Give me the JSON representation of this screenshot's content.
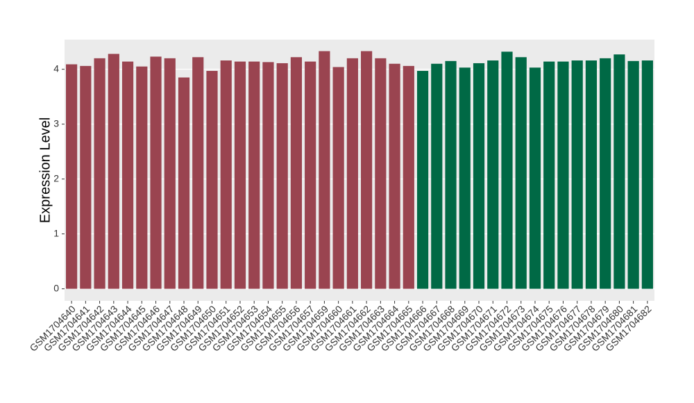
{
  "chart_data": {
    "type": "bar",
    "y_label": "Expression Level",
    "categories": [
      "GSM1704640",
      "GSM1704641",
      "GSM1704642",
      "GSM1704643",
      "GSM1704644",
      "GSM1704645",
      "GSM1704646",
      "GSM1704647",
      "GSM1704648",
      "GSM1704649",
      "GSM1704650",
      "GSM1704651",
      "GSM1704652",
      "GSM1704653",
      "GSM1704654",
      "GSM1704655",
      "GSM1704656",
      "GSM1704657",
      "GSM1704659",
      "GSM1704660",
      "GSM1704661",
      "GSM1704662",
      "GSM1704663",
      "GSM1704664",
      "GSM1704665",
      "GSM1704666",
      "GSM1704667",
      "GSM1704668",
      "GSM1704669",
      "GSM1704670",
      "GSM1704671",
      "GSM1704672",
      "GSM1704673",
      "GSM1704674",
      "GSM1704675",
      "GSM1704676",
      "GSM1704677",
      "GSM1704678",
      "GSM1704679",
      "GSM1704680",
      "GSM1704681",
      "GSM1704682"
    ],
    "values": [
      4.09,
      4.06,
      4.2,
      4.28,
      4.14,
      4.05,
      4.23,
      4.2,
      3.85,
      4.22,
      3.97,
      4.16,
      4.14,
      4.14,
      4.13,
      4.11,
      4.22,
      4.14,
      4.33,
      4.04,
      4.2,
      4.33,
      4.2,
      4.1,
      4.06,
      3.97,
      4.1,
      4.15,
      4.03,
      4.11,
      4.16,
      4.32,
      4.22,
      4.03,
      4.14,
      4.14,
      4.16,
      4.16,
      4.2,
      4.27,
      4.15,
      4.16
    ],
    "colors": [
      "#9a4450",
      "#9a4450",
      "#9a4450",
      "#9a4450",
      "#9a4450",
      "#9a4450",
      "#9a4450",
      "#9a4450",
      "#9a4450",
      "#9a4450",
      "#9a4450",
      "#9a4450",
      "#9a4450",
      "#9a4450",
      "#9a4450",
      "#9a4450",
      "#9a4450",
      "#9a4450",
      "#9a4450",
      "#9a4450",
      "#9a4450",
      "#9a4450",
      "#9a4450",
      "#9a4450",
      "#9a4450",
      "#006945",
      "#006945",
      "#006945",
      "#006945",
      "#006945",
      "#006945",
      "#006945",
      "#006945",
      "#006945",
      "#006945",
      "#006945",
      "#006945",
      "#006945",
      "#006945",
      "#006945",
      "#006945",
      "#006945"
    ],
    "ylim": [
      -0.22,
      4.54
    ],
    "yticks": [
      0,
      1,
      2,
      3,
      4
    ],
    "grid": true
  }
}
